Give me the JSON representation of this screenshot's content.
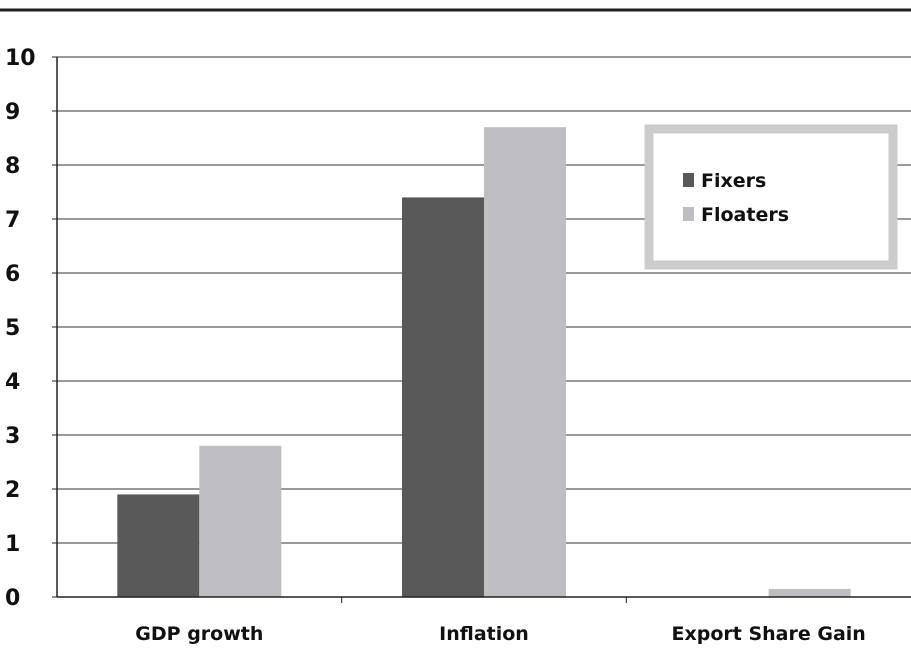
{
  "chart_data": {
    "type": "bar",
    "title": "",
    "xlabel": "",
    "ylabel": "",
    "categories": [
      "GDP growth",
      "Inflation",
      "Export Share Gain"
    ],
    "series": [
      {
        "name": "Fixers",
        "values": [
          1.9,
          7.4,
          0.0
        ],
        "color": "#595959"
      },
      {
        "name": "Floaters",
        "values": [
          2.8,
          8.7,
          0.15
        ],
        "color": "#bfbfc3"
      }
    ],
    "ylim": [
      0,
      10
    ],
    "yticks": [
      "0",
      "1",
      "2",
      "3",
      "4",
      "5",
      "6",
      "7",
      "8",
      "9",
      "10"
    ],
    "grid": true,
    "legend_position": "top-right",
    "colors": {
      "axis": "#222222",
      "grid": "#333333",
      "legend_border": "#cccccc"
    }
  }
}
